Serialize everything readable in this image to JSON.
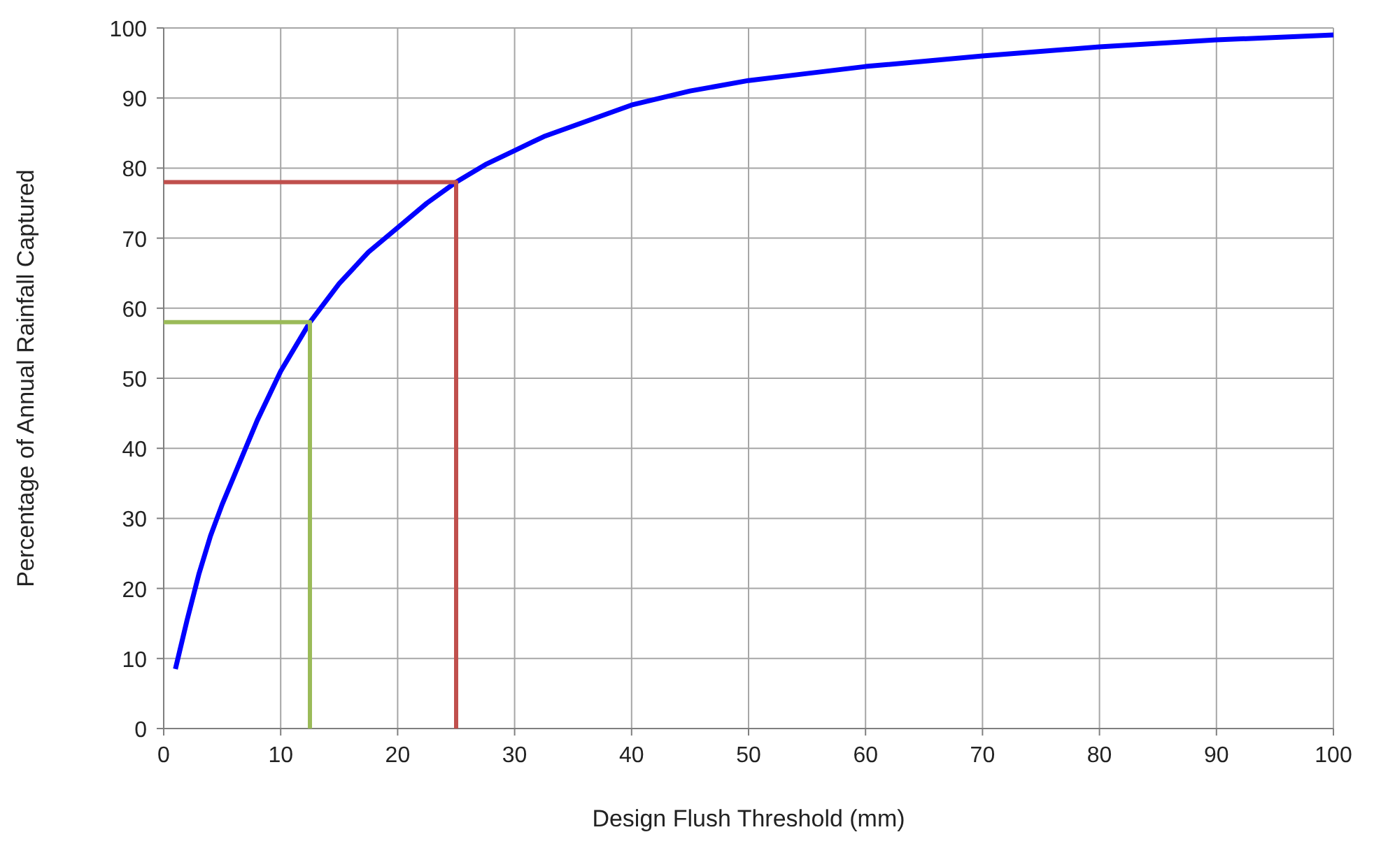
{
  "chart_data": {
    "type": "line",
    "xlabel": "Design Flush Threshold (mm)",
    "ylabel": "Percentage of Annual Rainfall Captured",
    "xlim": [
      0,
      100
    ],
    "xticks": [
      0,
      10,
      20,
      30,
      40,
      50,
      60,
      70,
      80,
      90,
      100
    ],
    "ylim": [
      0,
      100
    ],
    "yticks": [
      0,
      10,
      20,
      30,
      40,
      50,
      60,
      70,
      80,
      90,
      100
    ],
    "grid": true,
    "series": [
      {
        "color": "#0000ff",
        "x": [
          1,
          2,
          3,
          4,
          5,
          6,
          7,
          8,
          10,
          12.5,
          15,
          17.5,
          20,
          22.5,
          25,
          27.5,
          30,
          32.5,
          35,
          40,
          45,
          50,
          55,
          60,
          70,
          80,
          90,
          100
        ],
        "values": [
          8.5,
          15.5,
          22,
          27.5,
          32,
          36,
          40,
          44,
          51,
          58,
          63.5,
          68,
          71.5,
          75,
          78,
          80.5,
          82.5,
          84.5,
          86,
          89,
          91,
          92.5,
          93.5,
          94.5,
          96,
          97.3,
          98.3,
          99
        ]
      },
      {
        "color": "#c0504d",
        "x": [
          0,
          25,
          25
        ],
        "values": [
          78,
          78,
          0
        ]
      },
      {
        "color": "#9bbb59",
        "x": [
          0,
          12.5,
          12.5
        ],
        "values": [
          58,
          58,
          0
        ]
      }
    ]
  }
}
